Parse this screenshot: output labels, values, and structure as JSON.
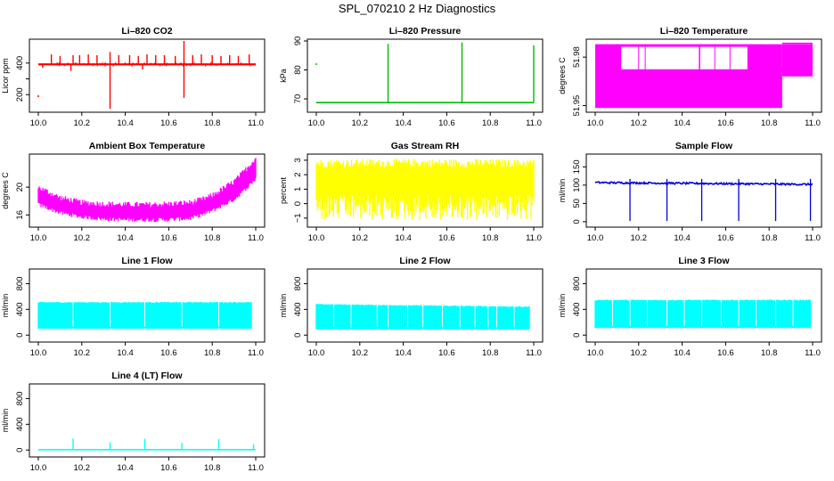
{
  "figure_title": "SPL_070210  2 Hz Diagnostics",
  "chart_data": [
    {
      "id": "co2",
      "type": "line",
      "title": "Li–820 CO2",
      "ylabel": "Licor ppm",
      "color": "#ff0000",
      "xlim": [
        10.0,
        11.0
      ],
      "ylim": [
        100,
        540
      ],
      "yticks": [
        200,
        300,
        400
      ],
      "ytick_labels": [
        "200",
        "",
        "400"
      ],
      "xticks": [
        10.0,
        10.2,
        10.4,
        10.6,
        10.8,
        11.0
      ],
      "xtick_labels": [
        "10.0",
        "10.2",
        "10.4",
        "10.6",
        "10.8",
        "11.0"
      ],
      "baseline": 392,
      "spikes": [
        [
          10.06,
          455
        ],
        [
          10.1,
          445
        ],
        [
          10.16,
          450
        ],
        [
          10.19,
          450
        ],
        [
          10.23,
          455
        ],
        [
          10.27,
          450
        ],
        [
          10.33,
          470
        ],
        [
          10.37,
          450
        ],
        [
          10.42,
          450
        ],
        [
          10.46,
          445
        ],
        [
          10.5,
          455
        ],
        [
          10.54,
          450
        ],
        [
          10.58,
          450
        ],
        [
          10.63,
          445
        ],
        [
          10.67,
          540
        ],
        [
          10.71,
          450
        ],
        [
          10.75,
          455
        ],
        [
          10.8,
          450
        ],
        [
          10.84,
          445
        ],
        [
          10.88,
          450
        ],
        [
          10.92,
          445
        ],
        [
          10.97,
          455
        ]
      ],
      "dips": [
        [
          10.33,
          110
        ],
        [
          10.67,
          180
        ],
        [
          10.15,
          350
        ],
        [
          10.48,
          360
        ],
        [
          10.02,
          370
        ]
      ],
      "isolated_points": [
        [
          10.0,
          190
        ]
      ]
    },
    {
      "id": "pressure",
      "type": "line",
      "title": "Li–820 Pressure",
      "ylabel": "kPa",
      "color": "#00bb00",
      "xlim": [
        10.0,
        11.0
      ],
      "ylim": [
        66,
        90
      ],
      "yticks": [
        70,
        80,
        90
      ],
      "ytick_labels": [
        "70",
        "80",
        "90"
      ],
      "xticks": [
        10.0,
        10.2,
        10.4,
        10.6,
        10.8,
        11.0
      ],
      "xtick_labels": [
        "10.0",
        "10.2",
        "10.4",
        "10.6",
        "10.8",
        "11.0"
      ],
      "baseline": 68.7,
      "spikes": [
        [
          10.33,
          89
        ],
        [
          10.67,
          89.5
        ],
        [
          11.0,
          88.5
        ]
      ],
      "isolated_points": [
        [
          10.0,
          82
        ]
      ]
    },
    {
      "id": "licor_temp",
      "type": "area",
      "title": "Li–820 Temperature",
      "ylabel": "degrees C",
      "color": "#ff00ff",
      "xlim": [
        10.0,
        11.0
      ],
      "ylim": [
        51.947,
        51.99
      ],
      "yticks": [
        51.95,
        51.98
      ],
      "ytick_labels": [
        "51.95",
        "51.98"
      ],
      "xticks": [
        10.0,
        10.2,
        10.4,
        10.6,
        10.8,
        11.0
      ],
      "xtick_labels": [
        "10.0",
        "10.2",
        "10.4",
        "10.6",
        "10.8",
        "11.0"
      ],
      "levels": {
        "top": 51.988,
        "mid": 51.9725,
        "low": 51.9685,
        "bottom": 51.9485
      }
    },
    {
      "id": "box_temp",
      "type": "area",
      "title": "Ambient Box Temperature",
      "ylabel": "degrees C",
      "color": "#ff00ff",
      "xlim": [
        10.0,
        11.0
      ],
      "ylim": [
        14.5,
        24.5
      ],
      "yticks": [
        16,
        20
      ],
      "ytick_labels": [
        "16",
        "20"
      ],
      "xticks": [
        10.0,
        10.2,
        10.4,
        10.6,
        10.8,
        11.0
      ],
      "xtick_labels": [
        "10.0",
        "10.2",
        "10.4",
        "10.6",
        "10.8",
        "11.0"
      ],
      "upper": [
        [
          10.0,
          20.0
        ],
        [
          10.1,
          18.5
        ],
        [
          10.2,
          17.8
        ],
        [
          10.3,
          17.6
        ],
        [
          10.4,
          17.5
        ],
        [
          10.5,
          17.5
        ],
        [
          10.6,
          17.6
        ],
        [
          10.7,
          17.8
        ],
        [
          10.75,
          18.2
        ],
        [
          10.8,
          18.8
        ],
        [
          10.85,
          19.8
        ],
        [
          10.9,
          20.8
        ],
        [
          10.95,
          22.4
        ],
        [
          11.0,
          24.2
        ]
      ],
      "lower": [
        [
          10.0,
          17.5
        ],
        [
          10.1,
          16.3
        ],
        [
          10.2,
          15.7
        ],
        [
          10.3,
          15.4
        ],
        [
          10.4,
          15.3
        ],
        [
          10.5,
          15.3
        ],
        [
          10.6,
          15.3
        ],
        [
          10.7,
          15.5
        ],
        [
          10.75,
          16.0
        ],
        [
          10.8,
          16.6
        ],
        [
          10.85,
          17.4
        ],
        [
          10.9,
          18.2
        ],
        [
          10.95,
          19.6
        ],
        [
          11.0,
          21.2
        ]
      ]
    },
    {
      "id": "rh",
      "type": "area",
      "title": "Gas Stream RH",
      "ylabel": "percent",
      "color": "#ffff00",
      "xlim": [
        10.0,
        11.0
      ],
      "ylim": [
        -1.5,
        3.3
      ],
      "yticks": [
        -1,
        0,
        1,
        2,
        3
      ],
      "ytick_labels": [
        "−1",
        "0",
        "1",
        "2",
        "3"
      ],
      "xticks": [
        10.0,
        10.2,
        10.4,
        10.6,
        10.8,
        11.0
      ],
      "xtick_labels": [
        "10.0",
        "10.2",
        "10.4",
        "10.6",
        "10.8",
        "11.0"
      ],
      "upper": 2.5,
      "lower": 0.6,
      "max": 3.1,
      "min": -1.2
    },
    {
      "id": "sample_flow",
      "type": "line",
      "title": "Sample Flow",
      "ylabel": "ml/min",
      "color": "#0000dd",
      "xlim": [
        10.0,
        11.0
      ],
      "ylim": [
        -10,
        180
      ],
      "yticks": [
        0,
        50,
        100,
        150
      ],
      "ytick_labels": [
        "0",
        "50",
        "100",
        "150"
      ],
      "xticks": [
        10.0,
        10.2,
        10.4,
        10.6,
        10.8,
        11.0
      ],
      "xtick_labels": [
        "10.0",
        "10.2",
        "10.4",
        "10.6",
        "10.8",
        "11.0"
      ],
      "baseline_start": 107,
      "baseline_end": 102,
      "dips": [
        10.16,
        10.33,
        10.49,
        10.66,
        10.83,
        10.99
      ]
    },
    {
      "id": "line1",
      "type": "area",
      "title": "Line 1 Flow",
      "ylabel": "ml/min",
      "color": "#00ffff",
      "xlim": [
        10.0,
        11.0
      ],
      "ylim": [
        -80,
        1000
      ],
      "yticks": [
        0,
        400,
        800
      ],
      "ytick_labels": [
        "0",
        "400",
        "800"
      ],
      "xticks": [
        10.0,
        10.2,
        10.4,
        10.6,
        10.8,
        11.0
      ],
      "xtick_labels": [
        "10.0",
        "10.2",
        "10.4",
        "10.6",
        "10.8",
        "11.0"
      ],
      "upper": 510,
      "lower": 100,
      "gaps": [
        10.16,
        10.33,
        10.49,
        10.66,
        10.83
      ]
    },
    {
      "id": "line2",
      "type": "area",
      "title": "Line 2 Flow",
      "ylabel": "ml/min",
      "color": "#00ffff",
      "xlim": [
        10.0,
        11.0
      ],
      "ylim": [
        -80,
        1000
      ],
      "yticks": [
        0,
        400,
        800
      ],
      "ytick_labels": [
        "0",
        "400",
        "800"
      ],
      "xticks": [
        10.0,
        10.2,
        10.4,
        10.6,
        10.8,
        11.0
      ],
      "xtick_labels": [
        "10.0",
        "10.2",
        "10.4",
        "10.6",
        "10.8",
        "11.0"
      ],
      "upper_start": 480,
      "upper_end": 440,
      "lower": 90,
      "gaps": [
        10.08,
        10.16,
        10.28,
        10.33,
        10.42,
        10.49,
        10.58,
        10.66,
        10.73,
        10.79,
        10.83,
        10.91
      ]
    },
    {
      "id": "line3",
      "type": "area",
      "title": "Line 3 Flow",
      "ylabel": "ml/min",
      "color": "#00ffff",
      "xlim": [
        10.0,
        11.0
      ],
      "ylim": [
        -80,
        1000
      ],
      "yticks": [
        0,
        400,
        800
      ],
      "ytick_labels": [
        "0",
        "400",
        "800"
      ],
      "xticks": [
        10.0,
        10.2,
        10.4,
        10.6,
        10.8,
        11.0
      ],
      "xtick_labels": [
        "10.0",
        "10.2",
        "10.4",
        "10.6",
        "10.8",
        "11.0"
      ],
      "upper": 545,
      "lower": 110,
      "gaps": [
        10.08,
        10.16,
        10.24,
        10.33,
        10.41,
        10.49,
        10.58,
        10.66,
        10.74,
        10.83,
        10.91
      ]
    },
    {
      "id": "line4",
      "type": "line",
      "title": "Line 4 (LT) Flow",
      "ylabel": "ml/min",
      "color": "#00ffff",
      "xlim": [
        10.0,
        11.0
      ],
      "ylim": [
        -80,
        1000
      ],
      "yticks": [
        0,
        400,
        800
      ],
      "ytick_labels": [
        "0",
        "400",
        "800"
      ],
      "xticks": [
        10.0,
        10.2,
        10.4,
        10.6,
        10.8,
        11.0
      ],
      "xtick_labels": [
        "10.0",
        "10.2",
        "10.4",
        "10.6",
        "10.8",
        "11.0"
      ],
      "baseline": 5,
      "spikes": [
        [
          10.16,
          180
        ],
        [
          10.33,
          120
        ],
        [
          10.49,
          175
        ],
        [
          10.66,
          110
        ],
        [
          10.83,
          170
        ],
        [
          10.99,
          90
        ]
      ]
    }
  ]
}
